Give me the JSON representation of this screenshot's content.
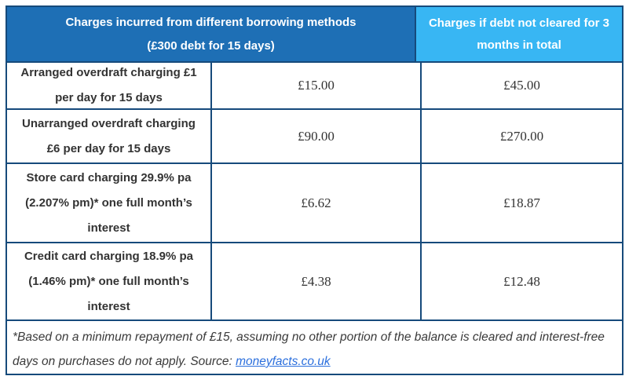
{
  "colors": {
    "border": "#164a7b",
    "header_left_bg": "#1e6fb5",
    "header_right_bg": "#38b6f3",
    "header_text": "#ffffff",
    "body_text": "#333333",
    "link": "#2b6fdd"
  },
  "table": {
    "header": {
      "left_line1": "Charges incurred from different borrowing methods",
      "left_line2": "(£300 debt for 15 days)",
      "right_line1": "Charges if debt not cleared for 3",
      "right_line2": "months in total"
    },
    "rows": [
      {
        "label_lines": [
          "Arranged overdraft charging £1",
          "per day for 15 days"
        ],
        "charge_15_days": "£15.00",
        "charge_3_months": "£45.00"
      },
      {
        "label_lines": [
          "Unarranged overdraft charging",
          "£6 per day for 15 days"
        ],
        "charge_15_days": "£90.00",
        "charge_3_months": "£270.00"
      },
      {
        "label_lines": [
          "Store card charging 29.9% pa",
          "(2.207% pm)* one full month’s",
          "interest"
        ],
        "charge_15_days": "£6.62",
        "charge_3_months": "£18.87"
      },
      {
        "label_lines": [
          "Credit card charging 18.9% pa",
          "(1.46% pm)* one full month’s",
          "interest"
        ],
        "charge_15_days": "£4.38",
        "charge_3_months": "£12.48"
      }
    ],
    "footnote": {
      "text_before_link": "*Based on a minimum repayment of £15, assuming no other portion of the balance is cleared and interest-free days on purchases do not apply. Source: ",
      "link_text": "moneyfacts.co.uk"
    }
  }
}
